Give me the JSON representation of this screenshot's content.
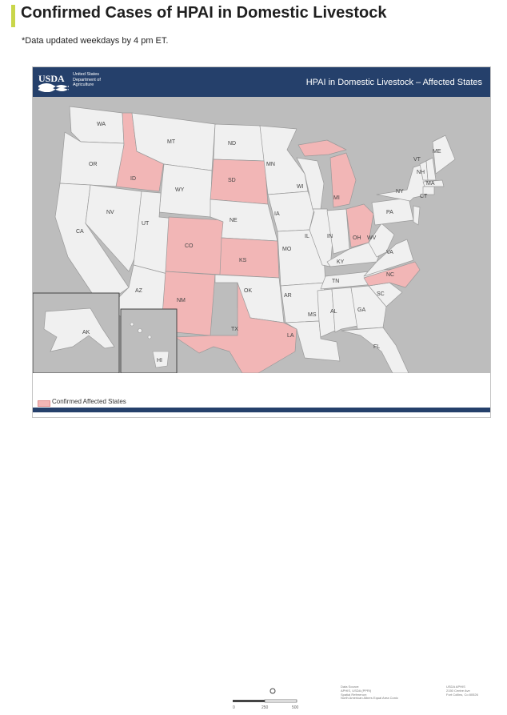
{
  "page": {
    "title": "Confirmed Cases of HPAI in Domestic Livestock",
    "note": "*Data updated weekdays by 4 pm ET."
  },
  "map": {
    "header": {
      "logo": "USDA",
      "agency_lines": [
        "United States",
        "Department of",
        "Agriculture"
      ],
      "title": "HPAI in Domestic Livestock – Affected States"
    },
    "colors": {
      "header_bg": "#25406b",
      "affected": "#f2b6b6",
      "unaffected": "#f0f0f0",
      "background": "#bdbdbd",
      "border": "#9a9a9a",
      "accent_bar": "#c9d64a"
    },
    "affected_states": [
      "ID",
      "SD",
      "CO",
      "KS",
      "NM",
      "TX",
      "MI",
      "OH",
      "NC"
    ],
    "state_labels": [
      "WA",
      "OR",
      "CA",
      "ID",
      "NV",
      "MT",
      "WY",
      "UT",
      "AZ",
      "CO",
      "NM",
      "ND",
      "SD",
      "NE",
      "KS",
      "OK",
      "TX",
      "MN",
      "IA",
      "MO",
      "AR",
      "LA",
      "WI",
      "IL",
      "MI",
      "IN",
      "OH",
      "KY",
      "TN",
      "MS",
      "AL",
      "GA",
      "FL",
      "SC",
      "NC",
      "VA",
      "WV",
      "PA",
      "NY",
      "VT",
      "NH",
      "ME",
      "MA",
      "CT",
      "AK",
      "HI"
    ],
    "legend": {
      "label": "Confirmed Affected States"
    },
    "scale": {
      "ticks": [
        "0",
        "250",
        "500"
      ]
    },
    "source_lines": [
      "Data Source:",
      "APHIS, USDA (PPRI)",
      "Spatial Reference:",
      "North American Albers Equal Area Conic"
    ],
    "contact_lines": [
      "USDA APHIS",
      "2150 Centre Ave",
      "Fort Collins, Co 80526"
    ]
  }
}
